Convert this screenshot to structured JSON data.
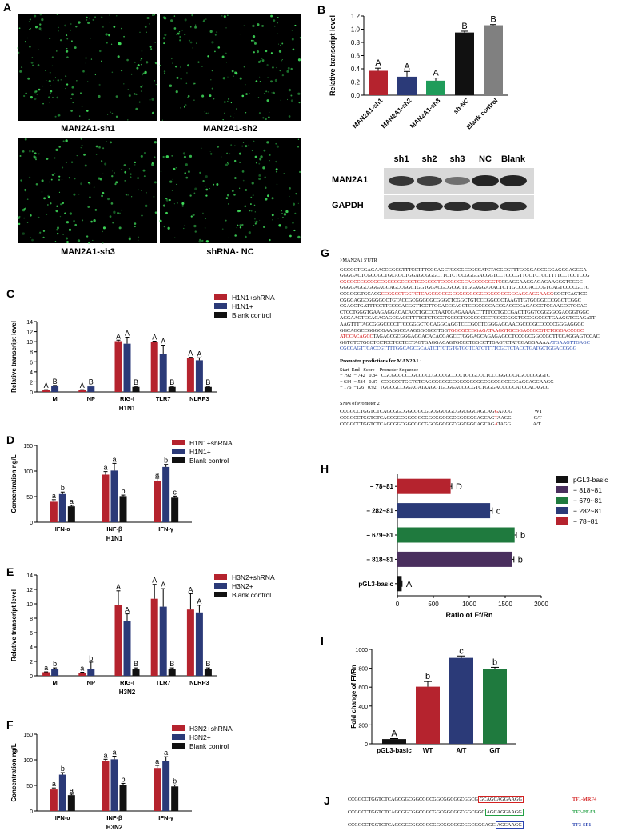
{
  "panel_A": {
    "letter": "A",
    "images": [
      {
        "caption": "MAN2A1-sh1"
      },
      {
        "caption": "MAN2A1-sh2"
      },
      {
        "caption": "MAN2A1-sh3"
      },
      {
        "caption": "shRNA- NC"
      }
    ]
  },
  "panel_B_blot": {
    "lanes": [
      "sh1",
      "sh2",
      "sh3",
      "NC",
      "Blank"
    ],
    "rows": [
      "MAN2A1",
      "GAPDH"
    ]
  },
  "panel_G": {
    "letter": "G",
    "header": ">MAN2A1 5'UTR",
    "sequence_lines": [
      {
        "segments": [
          {
            "t": "GGCGCTGGAGAACCGGCGTTTCCTTTCGCAGCTGCCGCCGCCATCTACGCGTTTGCGGAGCGGGAGGGAGGGA",
            "c": ""
          }
        ]
      },
      {
        "segments": [
          {
            "t": "GGGGACTCGCGGCTGCAGCTGGAGCGGGCTTCTCTCCGGGGACGGTCCTCCCGTTGCTCTCCTTTTCCTCCTCCG",
            "c": ""
          }
        ]
      },
      {
        "segments": [
          {
            "t": "CGCGCCCGCCGCCGCCCGCCCCTGCGCCCTCCCGGCGCAGCCCGGGTC",
            "c": "red"
          },
          {
            "t": "CGAGGAAGGAGAGAAGGGTCGGC",
            "c": ""
          }
        ]
      },
      {
        "segments": [
          {
            "t": "GGGGAGGCGGGAGGAGCCGGCTGGTGGACGCGCGCTTGGAGGAAACTCTTGCCCGACCCGTGAGTCCCCGCTC",
            "c": ""
          }
        ]
      },
      {
        "segments": [
          {
            "t": "CCGGGGTGCACG",
            "c": ""
          },
          {
            "t": "CCGGCCTGGTCTCAGCGGCGGCGGCGGCGGCGGCGGCGGCAGCAGGAAGG",
            "c": "red"
          },
          {
            "t": "GGCTCAGTCC",
            "c": ""
          }
        ]
      },
      {
        "segments": [
          {
            "t": "CGGGAGGCGGGGGCTGTACCGCGGGGGCGGGCTCGGCTGTCCCGGCGCTAAGTTGTGCGGCCCGGCTCGGC",
            "c": ""
          }
        ]
      },
      {
        "segments": [
          {
            "t": "CGACCTGATTTCCTTCCCCACGGTTCCTTGGACCCAGCTCCGCGCCACCGACCCCAGAGCCTCCAAGCCTGCAC",
            "c": ""
          }
        ]
      },
      {
        "segments": [
          {
            "t": "CTCCTGGGTGAAGAGGACACACCTGCCCTAATCGAGAAAACTTTTCCTGCCGACTTGGTCGGGGCGACGGTGGC",
            "c": ""
          }
        ]
      },
      {
        "segments": [
          {
            "t": "AGGAAGTCCAGACAGCGACCTTTTCTCTGCCTGCCCTGCGCGCCCTCGCCGGGTGCCGGCGCTGAAGGTCGAGATT",
            "c": ""
          }
        ]
      },
      {
        "segments": [
          {
            "t": "AAGTTTTAGCGGGCCCCTTCCGGGCTGCAGGCAGGTCCCGCCTCGGGAGCAACGCCGGCCCCCCGGGAGGGC",
            "c": ""
          }
        ]
      },
      {
        "segments": [
          {
            "t": "GGCAGGCCGGGCGAAGGCCAAGGGCGCGTGG",
            "c": ""
          },
          {
            "t": "TGGCGCCGGAGATAAGGTGCGGACCGCGTCTGGGACCCGC",
            "c": "red"
          }
        ]
      },
      {
        "segments": [
          {
            "t": "ATCCACAGCC",
            "c": "red"
          },
          {
            "t": "TAGAGCGCGGGAGGACACACGAGCCTGGGAGCAGAGAGCCTCCGGCGGCCGCTTCCAGGAGTCCAC",
            "c": ""
          }
        ]
      },
      {
        "segments": [
          {
            "t": "GGTGTCTGCCTCCTCCTCCTCCTAGTGAGGACAGTGCCCTGGCCTTGAGTCTATCGAGGAAAA",
            "c": ""
          },
          {
            "t": "ATGAAGTTGAGC",
            "c": "blue"
          }
        ]
      },
      {
        "segments": [
          {
            "t": "CGCCAGTTCACCGTTTTGGCAGCGCAATCTTCTGTGTGGTCATCTTTTCGCTCTACCTGATGCTGGACCGGG",
            "c": "blue"
          }
        ]
      }
    ],
    "promoter_title": "Promoter predictions for MAN2A1 :",
    "promoter_header": [
      "Start",
      "End",
      "Score",
      "Promoter Sequence"
    ],
    "promoter_rows": [
      [
        "− 792",
        "− 742",
        "0.84",
        "CGCGCGCCCGCCGCCGCCCGCCCCTGCGCCCTCCCGGCGCAGCCCGGGTC"
      ],
      [
        "− 634",
        "− 584",
        "0.87",
        "CCGGCCTGGTCTCAGCGGCGGCGGCGGCGGCGGCGGCGGCAGCAGGAAGG"
      ],
      [
        "− 176",
        "−126",
        "0.92",
        "TGGCGCCGGAGATAAGGTGCGGACCGCGTCTGGGACCCGCATCCACAGCC"
      ]
    ],
    "snp_title": "SNPs of Promoter 2",
    "snp_rows": [
      {
        "pre": "CCGGCCTGGTCTCAGCGGCGGCGGCGGCGGCGGCGGCGGCAGCAG",
        "snp": "G",
        "post": "AAGG",
        "label": "WT"
      },
      {
        "pre": "CCGGCCTGGTCTCAGCGGCGGCGGCGGCGGCGGCGGCGGCAGCAG",
        "snp": "T",
        "post": "AAGG",
        "label": "G/T"
      },
      {
        "pre": "CCGGCCTGGTCTCAGCGGCGGCGGCGGCGGCGGCGGCGGCAGCAG",
        "snp": "A",
        "post": "TAGG",
        "label": "A/T"
      }
    ]
  },
  "panel_J": {
    "letter": "J",
    "rows": [
      {
        "pre": "CCGGCCTGGTCTCAGCGGCGGCGGCGGCGGCGGCGGCG",
        "boxed": "GCAGCAGGAAGG",
        "post": "",
        "tf": "TF1-MRF4",
        "color": "#d42020"
      },
      {
        "pre": "CCGGCCTGGTCTCAGCGGCGGCGGCGGCGGCGGCGGCGGC",
        "boxed": "AGCAGGAAGG",
        "post": "",
        "tf": "TF2-PEA3",
        "color": "#22a044"
      },
      {
        "pre": "CCGGCCTGGTCTCAGCGGCGGCGGCGGCGGCGGCGGCGGCAGC",
        "boxed": "AGGAAGG",
        "post": "",
        "tf": "TF3-SP1",
        "color": "#2a44b0"
      }
    ]
  },
  "chart_data": [
    {
      "id": "B",
      "type": "bar",
      "categories": [
        "MAN2A1-sh1",
        "MAN2A1-sh2",
        "MAN2A1-sh3",
        "sh-NC",
        "Blank control"
      ],
      "values": [
        0.37,
        0.28,
        0.22,
        0.95,
        1.06
      ],
      "errors": [
        0.04,
        0.08,
        0.04,
        0.02,
        0.01
      ],
      "labels": [
        "A",
        "A",
        "A",
        "B",
        "B"
      ],
      "colors": [
        "#b5232e",
        "#2b3a78",
        "#1f9c5a",
        "#111111",
        "#808080"
      ],
      "ylabel": "Relative transcript level",
      "ylim": [
        0,
        1.2
      ],
      "yticks": [
        0,
        0.2,
        0.4,
        0.6,
        0.8,
        1.0,
        1.2
      ],
      "ytick_labels": [
        "0.0",
        "0.2",
        "0.4",
        "0.6",
        "0.8",
        "1.0",
        "1.2"
      ]
    },
    {
      "id": "C",
      "type": "bar",
      "categories": [
        "M",
        "NP",
        "RIG-I",
        "TLR7",
        "NLRP3"
      ],
      "series": [
        {
          "name": "H1N1+shRNA",
          "color": "#b5232e",
          "values": [
            0.4,
            0.4,
            10.1,
            9.9,
            6.7
          ],
          "errors": [
            0.05,
            0.05,
            0.2,
            0.2,
            0.2
          ],
          "labels": [
            "A",
            "A",
            "A",
            "A",
            "A"
          ]
        },
        {
          "name": "H1N1+",
          "color": "#2b3a78",
          "values": [
            1.2,
            1.1,
            9.6,
            7.5,
            6.3
          ],
          "errors": [
            0.1,
            0.1,
            1.3,
            1.8,
            0.5
          ],
          "labels": [
            "B",
            "B",
            "A",
            "A",
            "A"
          ]
        },
        {
          "name": "Blank control",
          "color": "#111111",
          "values": [
            0,
            0,
            1.0,
            1.0,
            1.0
          ],
          "errors": [
            0,
            0,
            0.1,
            0.1,
            0.1
          ],
          "labels": [
            "",
            "",
            "B",
            "B",
            "B"
          ]
        }
      ],
      "xlabel": "H1N1",
      "ylabel": "Relative transcript level",
      "ylim": [
        0,
        14
      ],
      "yticks": [
        0,
        2,
        4,
        6,
        8,
        10,
        12,
        14
      ]
    },
    {
      "id": "D",
      "type": "bar",
      "categories": [
        "IFN-α",
        "INF-β",
        "IFN-γ"
      ],
      "series": [
        {
          "name": "H1N1+shRNA",
          "color": "#b5232e",
          "values": [
            40,
            93,
            81
          ],
          "errors": [
            4,
            6,
            5
          ],
          "labels": [
            "a",
            "a",
            "a"
          ]
        },
        {
          "name": "H1N1+",
          "color": "#2b3a78",
          "values": [
            55,
            101,
            108
          ],
          "errors": [
            4,
            14,
            5
          ],
          "labels": [
            "b",
            "a",
            "b"
          ]
        },
        {
          "name": "Blank control",
          "color": "#111111",
          "values": [
            31,
            51,
            48
          ],
          "errors": [
            2,
            2,
            3
          ],
          "labels": [
            "a",
            "b",
            "c"
          ]
        }
      ],
      "xlabel": "H1N1",
      "ylabel": "Concentration ng/L",
      "ylim": [
        0,
        150
      ],
      "yticks": [
        0,
        50,
        100,
        150
      ]
    },
    {
      "id": "E",
      "type": "bar",
      "categories": [
        "M",
        "NP",
        "RIG-I",
        "TLR7",
        "NLRP3"
      ],
      "series": [
        {
          "name": "H3N2+shRNA",
          "color": "#b5232e",
          "values": [
            0.5,
            0.4,
            9.8,
            10.7,
            9.2
          ],
          "errors": [
            0.05,
            0.1,
            2.0,
            2.0,
            2.2
          ],
          "labels": [
            "a",
            "a",
            "A",
            "A",
            "A"
          ]
        },
        {
          "name": "H3N2+",
          "color": "#2b3a78",
          "values": [
            1.0,
            1.0,
            7.6,
            9.6,
            8.8
          ],
          "errors": [
            0.1,
            0.9,
            1.0,
            2.5,
            1.0
          ],
          "labels": [
            "b",
            "b",
            "A",
            "A",
            "A"
          ]
        },
        {
          "name": "Blank control",
          "color": "#111111",
          "values": [
            0,
            0,
            1.0,
            1.0,
            1.0
          ],
          "errors": [
            0,
            0,
            0.1,
            0.1,
            0.1
          ],
          "labels": [
            "",
            "",
            "B",
            "B",
            "B"
          ]
        }
      ],
      "xlabel": "H3N2",
      "ylabel": "Relative transcript level",
      "ylim": [
        0,
        14
      ],
      "yticks": [
        0,
        2,
        4,
        6,
        8,
        10,
        12,
        14
      ]
    },
    {
      "id": "F",
      "type": "bar",
      "categories": [
        "IFN-α",
        "INF-β",
        "IFN-γ"
      ],
      "series": [
        {
          "name": "H3N2+shRNA",
          "color": "#b5232e",
          "values": [
            42,
            98,
            84
          ],
          "errors": [
            3,
            3,
            5
          ],
          "labels": [
            "a",
            "a",
            "a"
          ]
        },
        {
          "name": "H3N2+",
          "color": "#2b3a78",
          "values": [
            71,
            101,
            97
          ],
          "errors": [
            4,
            6,
            9
          ],
          "labels": [
            "b",
            "a",
            "a"
          ]
        },
        {
          "name": "Blank control",
          "color": "#111111",
          "values": [
            31,
            51,
            48
          ],
          "errors": [
            2,
            3,
            3
          ],
          "labels": [
            "a",
            "b",
            "b"
          ]
        }
      ],
      "xlabel": "H3N2",
      "ylabel": "Concentration ng/L",
      "ylim": [
        0,
        150
      ],
      "yticks": [
        0,
        50,
        100,
        150
      ]
    },
    {
      "id": "H",
      "type": "bar",
      "orientation": "horizontal",
      "categories": [
        "− 78~81",
        "− 282~81",
        "− 679~81",
        "− 818~81",
        "pGL3-basic"
      ],
      "values": [
        740,
        1290,
        1630,
        1600,
        60
      ],
      "errors": [
        15,
        30,
        25,
        20,
        5
      ],
      "labels": [
        "D",
        "c",
        "b",
        "b",
        "A"
      ],
      "colors": [
        "#b5232e",
        "#2b3a78",
        "#1f7a3e",
        "#4a2f5e",
        "#111111"
      ],
      "xlabel": "Ratio of Ff/Rn",
      "xlim": [
        0,
        2000
      ],
      "xticks": [
        0,
        500,
        1000,
        1500,
        2000
      ],
      "legend": [
        {
          "name": "pGL3-basic",
          "color": "#111111"
        },
        {
          "name": "− 818~81",
          "color": "#4a2f5e"
        },
        {
          "name": "− 679~81",
          "color": "#1f7a3e"
        },
        {
          "name": "− 282~81",
          "color": "#2b3a78"
        },
        {
          "name": "− 78~81",
          "color": "#b5232e"
        }
      ]
    },
    {
      "id": "I",
      "type": "bar",
      "categories": [
        "pGL3-basic",
        "WT",
        "A/T",
        "G/T"
      ],
      "values": [
        50,
        605,
        910,
        790
      ],
      "errors": [
        5,
        55,
        20,
        20
      ],
      "labels": [
        "A",
        "b",
        "c",
        "b"
      ],
      "colors": [
        "#111111",
        "#b5232e",
        "#2b3a78",
        "#1f7a3e"
      ],
      "ylabel": "Fold change of Ff/Rn",
      "ylim": [
        0,
        1000
      ],
      "yticks": [
        0,
        200,
        400,
        600,
        800,
        1000
      ]
    }
  ]
}
